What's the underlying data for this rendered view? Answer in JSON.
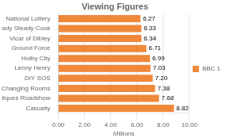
{
  "chart_data": {
    "type": "bar",
    "orientation": "horizontal",
    "title": "Viewing Figures",
    "categories": [
      "Casualty",
      "Antiques Roadshow",
      "Changing Rooms",
      "DIY SOS",
      "Lenny Henry",
      "Holby City",
      "Ground Force",
      "Vicar of Dibley",
      "Ready Steady Cook",
      "National Lottery"
    ],
    "series": [
      {
        "name": "BBC 1",
        "color": "#F0883A",
        "values": [
          8.82,
          7.68,
          7.38,
          7.2,
          7.03,
          6.99,
          6.71,
          6.34,
          6.33,
          6.27
        ],
        "value_labels": [
          "8.82",
          "7.68",
          "7.38",
          "7.20",
          "7.03",
          "6.99",
          "6.71",
          "6.34",
          "6.33",
          "6.27"
        ]
      }
    ],
    "xlabel": "Millions",
    "xlim": [
      0,
      10.0
    ],
    "xticks": [
      {
        "value": 0,
        "label": "0.00"
      },
      {
        "value": 2,
        "label": "2.00"
      },
      {
        "value": 4,
        "label": "4.00"
      },
      {
        "value": 6,
        "label": "6.00"
      },
      {
        "value": 8,
        "label": "8.00"
      },
      {
        "value": 10,
        "label": "10.00"
      }
    ],
    "grid": true,
    "legend": "right",
    "data_labels": true
  }
}
